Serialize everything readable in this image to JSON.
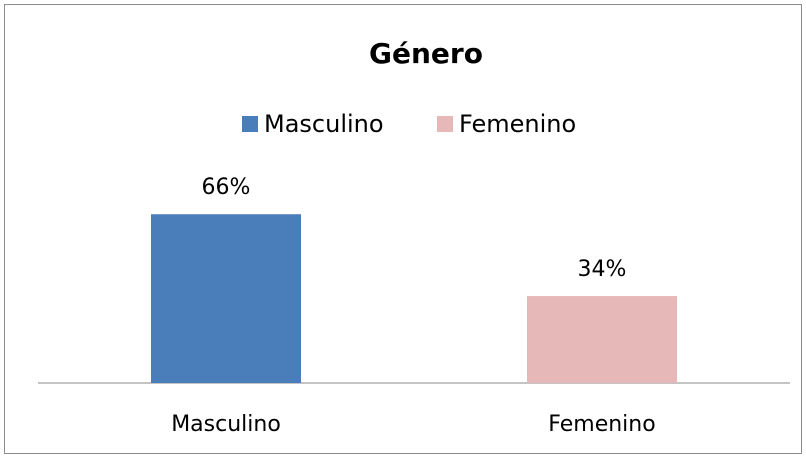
{
  "chart_data": {
    "type": "bar",
    "title": "Género",
    "categories": [
      "Masculino",
      "Femenino"
    ],
    "values": [
      66,
      34
    ],
    "value_labels": [
      "66%",
      "34%"
    ],
    "colors": [
      "#4a7ebb",
      "#e6b9b8"
    ],
    "ylim": [
      0,
      70
    ],
    "legend": "top"
  }
}
